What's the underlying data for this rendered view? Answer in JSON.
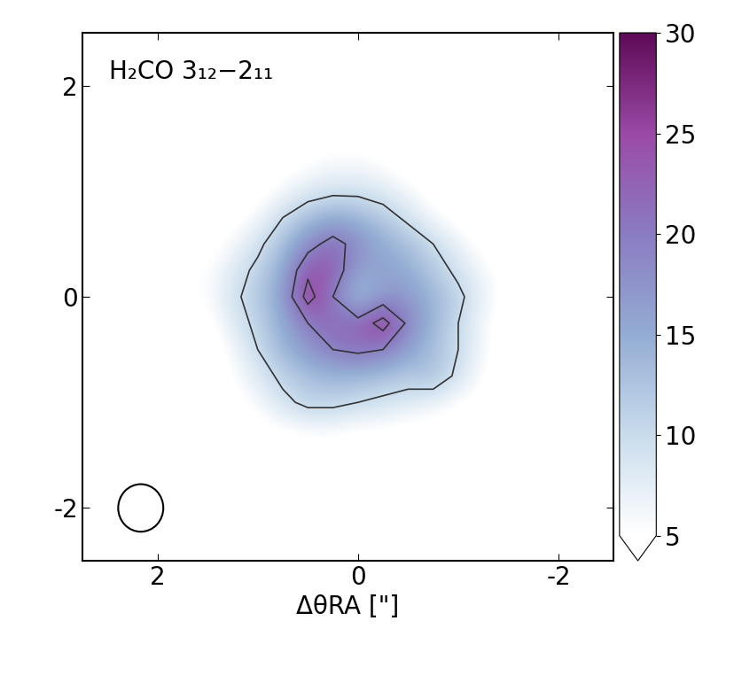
{
  "chart_data": {
    "type": "heatmap",
    "title": "H₂CO 3₁₂−2₁₁",
    "x_label": "ΔθRA [\"]",
    "xlim": [
      2.75,
      -2.55
    ],
    "xticks": [
      2,
      0,
      -2
    ],
    "ylim": [
      -2.5,
      2.5
    ],
    "yticks": [
      -2,
      0,
      2
    ],
    "x": [
      1.5,
      1.25,
      1.0,
      0.75,
      0.5,
      0.25,
      0,
      -0.25,
      -0.5,
      -0.75,
      -1.0,
      -1.25,
      -1.5
    ],
    "y": [
      1.5,
      1.25,
      1.0,
      0.75,
      0.5,
      0.25,
      0,
      -0.25,
      -0.5,
      -0.75,
      -1.0,
      -1.25,
      -1.5
    ],
    "cells": [
      [
        3,
        3,
        3,
        3,
        4,
        4,
        4,
        4,
        3,
        3,
        3,
        3,
        3
      ],
      [
        3,
        3,
        3,
        4,
        5,
        6,
        6,
        5,
        4,
        3,
        3,
        3,
        3
      ],
      [
        3,
        3,
        4,
        6,
        8,
        9,
        9,
        8,
        6,
        4,
        3,
        3,
        3
      ],
      [
        3,
        4,
        6,
        10,
        13,
        15,
        14,
        12,
        9,
        6,
        4,
        3,
        3
      ],
      [
        4,
        6,
        9,
        13,
        18,
        22,
        18,
        15,
        13,
        10,
        7,
        4,
        3
      ],
      [
        5,
        8,
        11,
        15,
        24,
        23,
        16,
        16,
        15,
        12,
        9,
        6,
        4
      ],
      [
        5,
        9,
        12,
        16,
        27,
        20,
        12,
        17,
        17,
        14,
        11,
        7,
        4
      ],
      [
        4,
        8,
        11,
        15,
        20,
        22,
        22,
        27,
        19,
        14,
        10,
        6,
        3
      ],
      [
        3,
        6,
        10,
        14,
        17,
        20,
        21,
        20,
        16,
        13,
        10,
        6,
        3
      ],
      [
        3,
        5,
        8,
        11,
        13,
        14,
        14,
        13,
        12,
        13,
        9,
        5,
        3
      ],
      [
        3,
        4,
        6,
        9,
        11,
        11,
        10,
        9,
        8,
        7,
        5,
        4,
        3
      ],
      [
        3,
        3,
        4,
        5,
        6,
        6,
        5,
        5,
        4,
        4,
        3,
        3,
        3
      ],
      [
        3,
        3,
        3,
        3,
        3,
        3,
        3,
        3,
        3,
        3,
        3,
        3,
        3
      ]
    ],
    "contour_levels": [
      10,
      20,
      25
    ],
    "colorbar": {
      "range": [
        5,
        30
      ],
      "ticks": [
        5,
        10,
        15,
        20,
        25,
        30
      ]
    },
    "beam_diameter": 0.45,
    "grid": false
  }
}
